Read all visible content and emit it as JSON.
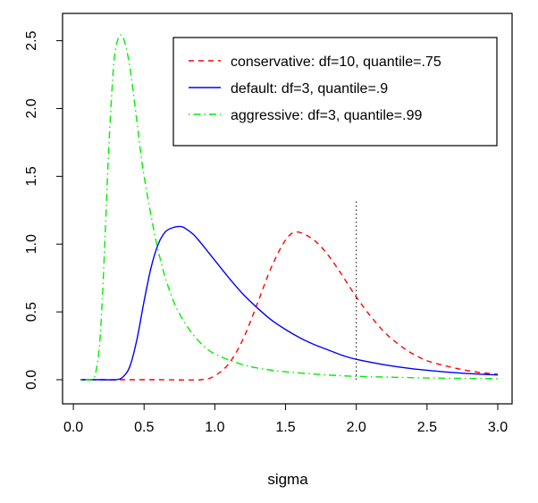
{
  "chart_data": {
    "type": "line",
    "title": "",
    "xlabel": "sigma",
    "ylabel": "",
    "xlim": [
      0.05,
      3.0
    ],
    "ylim": [
      0.0,
      2.55
    ],
    "x_ticks": [
      "0.0",
      "0.5",
      "1.0",
      "1.5",
      "2.0",
      "2.5",
      "3.0"
    ],
    "y_ticks": [
      "0.0",
      "0.5",
      "1.0",
      "1.5",
      "2.0",
      "2.5"
    ],
    "grid": false,
    "legend_position": "top-right",
    "reference_line": {
      "x": 2.0,
      "y_top": 1.33,
      "style": "dotted",
      "color": "#000000"
    },
    "series": [
      {
        "name": "conservative: df=10, quantile=.75",
        "color": "#ff0000",
        "style": "dashed",
        "x": [
          0.05,
          0.3,
          0.6,
          0.9,
          1.0,
          1.1,
          1.2,
          1.3,
          1.4,
          1.5,
          1.58,
          1.7,
          1.8,
          1.9,
          2.0,
          2.1,
          2.2,
          2.3,
          2.4,
          2.5,
          2.6,
          2.7,
          2.8,
          2.9,
          3.0
        ],
        "y": [
          0.0,
          0.0,
          0.0,
          0.0,
          0.03,
          0.12,
          0.3,
          0.56,
          0.83,
          1.03,
          1.09,
          1.03,
          0.92,
          0.77,
          0.61,
          0.47,
          0.35,
          0.26,
          0.19,
          0.14,
          0.11,
          0.085,
          0.065,
          0.05,
          0.04
        ]
      },
      {
        "name": "default: df=3, quantile=.9",
        "color": "#0000ff",
        "style": "solid",
        "x": [
          0.05,
          0.2,
          0.3,
          0.35,
          0.4,
          0.45,
          0.5,
          0.55,
          0.6,
          0.65,
          0.7,
          0.76,
          0.8,
          0.85,
          0.9,
          1.0,
          1.1,
          1.2,
          1.3,
          1.4,
          1.5,
          1.6,
          1.7,
          1.8,
          1.9,
          2.0,
          2.2,
          2.4,
          2.6,
          2.8,
          3.0
        ],
        "y": [
          0.0,
          0.0,
          0.0,
          0.02,
          0.1,
          0.3,
          0.58,
          0.83,
          1.0,
          1.09,
          1.12,
          1.13,
          1.11,
          1.07,
          1.01,
          0.88,
          0.75,
          0.63,
          0.53,
          0.44,
          0.37,
          0.31,
          0.26,
          0.22,
          0.18,
          0.15,
          0.11,
          0.08,
          0.06,
          0.045,
          0.035
        ]
      },
      {
        "name": "aggressive: df=3, quantile=.99",
        "color": "#00ee00",
        "style": "dotdash",
        "x": [
          0.05,
          0.12,
          0.15,
          0.18,
          0.2,
          0.22,
          0.25,
          0.28,
          0.3,
          0.33,
          0.36,
          0.4,
          0.45,
          0.5,
          0.6,
          0.7,
          0.8,
          0.9,
          1.0,
          1.2,
          1.4,
          1.6,
          1.8,
          2.0,
          2.5,
          3.0
        ],
        "y": [
          0.0,
          0.0,
          0.02,
          0.2,
          0.5,
          0.95,
          1.7,
          2.25,
          2.45,
          2.54,
          2.5,
          2.3,
          1.9,
          1.5,
          0.95,
          0.6,
          0.4,
          0.27,
          0.19,
          0.11,
          0.07,
          0.05,
          0.035,
          0.025,
          0.013,
          0.008
        ]
      }
    ]
  }
}
